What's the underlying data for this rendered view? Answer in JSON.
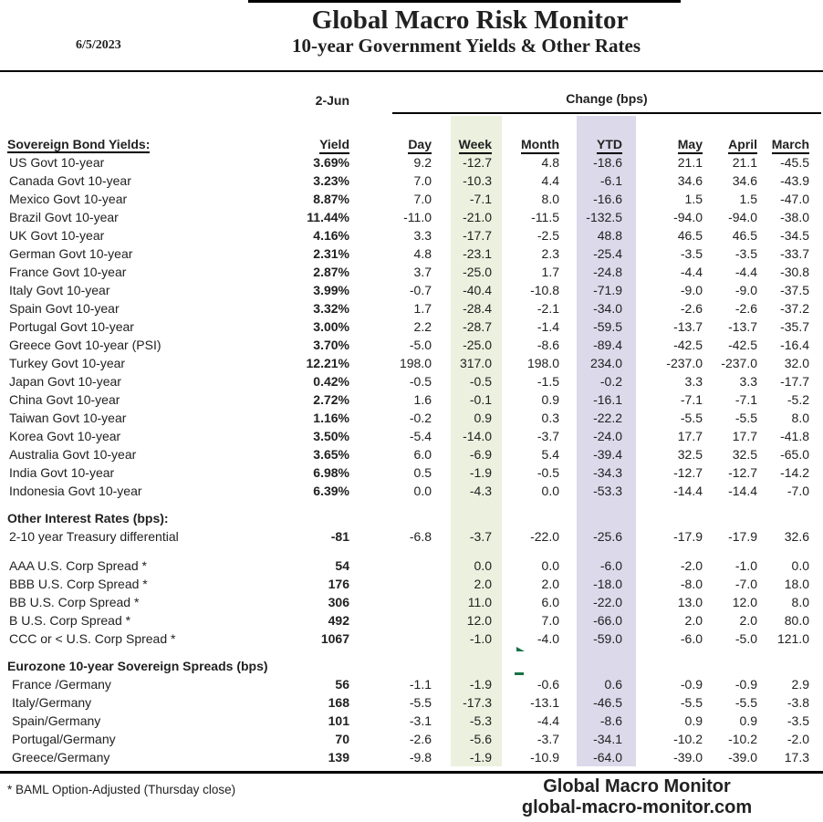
{
  "header": {
    "date": "6/5/2023",
    "title": "Global Macro Risk Monitor",
    "subtitle": "10-year Government Yields & Other Rates"
  },
  "columns": {
    "asof": "2-Jun",
    "yield_label": "Yield",
    "change_group": "Change (bps)",
    "names": [
      "Day",
      "Week",
      "Month",
      "YTD",
      "May",
      "April",
      "March"
    ]
  },
  "sections": [
    {
      "title": "Sovereign Bond Yields:",
      "rows": [
        {
          "label": "US Govt 10-year",
          "yield": "3.69%",
          "values": [
            "9.2",
            "-12.7",
            "4.8",
            "-18.6",
            "21.1",
            "21.1",
            "-45.5"
          ]
        },
        {
          "label": "Canada Govt 10-year",
          "yield": "3.23%",
          "values": [
            "7.0",
            "-10.3",
            "4.4",
            "-6.1",
            "34.6",
            "34.6",
            "-43.9"
          ]
        },
        {
          "label": "Mexico Govt 10-year",
          "yield": "8.87%",
          "values": [
            "7.0",
            "-7.1",
            "8.0",
            "-16.6",
            "1.5",
            "1.5",
            "-47.0"
          ]
        },
        {
          "label": "Brazil Govt 10-year",
          "yield": "11.44%",
          "values": [
            "-11.0",
            "-21.0",
            "-11.5",
            "-132.5",
            "-94.0",
            "-94.0",
            "-38.0"
          ]
        },
        {
          "label": "UK Govt 10-year",
          "yield": "4.16%",
          "values": [
            "3.3",
            "-17.7",
            "-2.5",
            "48.8",
            "46.5",
            "46.5",
            "-34.5"
          ]
        },
        {
          "label": "German Govt 10-year",
          "yield": "2.31%",
          "values": [
            "4.8",
            "-23.1",
            "2.3",
            "-25.4",
            "-3.5",
            "-3.5",
            "-33.7"
          ]
        },
        {
          "label": "France Govt 10-year",
          "yield": "2.87%",
          "values": [
            "3.7",
            "-25.0",
            "1.7",
            "-24.8",
            "-4.4",
            "-4.4",
            "-30.8"
          ]
        },
        {
          "label": "Italy Govt 10-year",
          "yield": "3.99%",
          "values": [
            "-0.7",
            "-40.4",
            "-10.8",
            "-71.9",
            "-9.0",
            "-9.0",
            "-37.5"
          ]
        },
        {
          "label": "Spain Govt 10-year",
          "yield": "3.32%",
          "values": [
            "1.7",
            "-28.4",
            "-2.1",
            "-34.0",
            "-2.6",
            "-2.6",
            "-37.2"
          ]
        },
        {
          "label": "Portugal Govt 10-year",
          "yield": "3.00%",
          "values": [
            "2.2",
            "-28.7",
            "-1.4",
            "-59.5",
            "-13.7",
            "-13.7",
            "-35.7"
          ]
        },
        {
          "label": "Greece Govt 10-year (PSI)",
          "yield": "3.70%",
          "values": [
            "-5.0",
            "-25.0",
            "-8.6",
            "-89.4",
            "-42.5",
            "-42.5",
            "-16.4"
          ]
        },
        {
          "label": "Turkey Govt 10-year",
          "yield": "12.21%",
          "values": [
            "198.0",
            "317.0",
            "198.0",
            "234.0",
            "-237.0",
            "-237.0",
            "32.0"
          ]
        },
        {
          "label": "Japan Govt 10-year",
          "yield": "0.42%",
          "values": [
            "-0.5",
            "-0.5",
            "-1.5",
            "-0.2",
            "3.3",
            "3.3",
            "-17.7"
          ]
        },
        {
          "label": "China Govt 10-year",
          "yield": "2.72%",
          "values": [
            "1.6",
            "-0.1",
            "0.9",
            "-16.1",
            "-7.1",
            "-7.1",
            "-5.2"
          ]
        },
        {
          "label": "Taiwan Govt 10-year",
          "yield": "1.16%",
          "values": [
            "-0.2",
            "0.9",
            "0.3",
            "-22.2",
            "-5.5",
            "-5.5",
            "8.0"
          ]
        },
        {
          "label": "Korea Govt 10-year",
          "yield": "3.50%",
          "values": [
            "-5.4",
            "-14.0",
            "-3.7",
            "-24.0",
            "17.7",
            "17.7",
            "-41.8"
          ]
        },
        {
          "label": "Australia Govt 10-year",
          "yield": "3.65%",
          "values": [
            "6.0",
            "-6.9",
            "5.4",
            "-39.4",
            "32.5",
            "32.5",
            "-65.0"
          ]
        },
        {
          "label": "India Govt 10-year",
          "yield": "6.98%",
          "values": [
            "0.5",
            "-1.9",
            "-0.5",
            "-34.3",
            "-12.7",
            "-12.7",
            "-14.2"
          ]
        },
        {
          "label": "Indonesia Govt 10-year",
          "yield": "6.39%",
          "values": [
            "0.0",
            "-4.3",
            "0.0",
            "-53.3",
            "-14.4",
            "-14.4",
            "-7.0"
          ]
        }
      ]
    },
    {
      "title": "Other Interest Rates  (bps):",
      "rows": [
        {
          "label": "2-10 year Treasury differential",
          "yield": "-81",
          "values": [
            "-6.8",
            "-3.7",
            "-22.0",
            "-25.6",
            "-17.9",
            "-17.9",
            "32.6"
          ]
        }
      ]
    },
    {
      "title": null,
      "rows": [
        {
          "label": "AAA U.S. Corp Spread *",
          "yield": "54",
          "values": [
            "",
            "0.0",
            "0.0",
            "-6.0",
            "-2.0",
            "-1.0",
            "0.0"
          ]
        },
        {
          "label": "BBB U.S. Corp Spread *",
          "yield": "176",
          "values": [
            "",
            "2.0",
            "2.0",
            "-18.0",
            "-8.0",
            "-7.0",
            "18.0"
          ]
        },
        {
          "label": "BB U.S. Corp Spread *",
          "yield": "306",
          "values": [
            "",
            "11.0",
            "6.0",
            "-22.0",
            "13.0",
            "12.0",
            "8.0"
          ]
        },
        {
          "label": "B U.S. Corp Spread *",
          "yield": "492",
          "values": [
            "",
            "12.0",
            "7.0",
            "-66.0",
            "2.0",
            "2.0",
            "80.0"
          ]
        },
        {
          "label": "CCC or < U.S. Corp Spread *",
          "yield": "1067",
          "values": [
            "",
            "-1.0",
            "-4.0",
            "-59.0",
            "-6.0",
            "-5.0",
            "121.0"
          ]
        }
      ]
    },
    {
      "title": "Eurozone 10-year Sovereign Spreads (bps)",
      "rows": [
        {
          "label": "France /Germany",
          "yield": "56",
          "values": [
            "-1.1",
            "-1.9",
            "-0.6",
            "0.6",
            "-0.9",
            "-0.9",
            "2.9"
          ]
        },
        {
          "label": "Italy/Germany",
          "yield": "168",
          "values": [
            "-5.5",
            "-17.3",
            "-13.1",
            "-46.5",
            "-5.5",
            "-5.5",
            "-3.8"
          ]
        },
        {
          "label": "Spain/Germany",
          "yield": "101",
          "values": [
            "-3.1",
            "-5.3",
            "-4.4",
            "-8.6",
            "0.9",
            "0.9",
            "-3.5"
          ]
        },
        {
          "label": "Portugal/Germany",
          "yield": "70",
          "values": [
            "-2.6",
            "-5.6",
            "-3.7",
            "-34.1",
            "-10.2",
            "-10.2",
            "-2.0"
          ]
        },
        {
          "label": "Greece/Germany",
          "yield": "139",
          "values": [
            "-9.8",
            "-1.9",
            "-10.9",
            "-64.0",
            "-39.0",
            "-39.0",
            "17.3"
          ]
        }
      ]
    }
  ],
  "footer": {
    "note": "* BAML Option-Adjusted (Thursday close)",
    "brand_line1": "Global Macro Monitor",
    "brand_line2": "global-macro-monitor.com"
  },
  "colors": {
    "week_band": "#ECF0DE",
    "ytd_band": "#DCD9EA"
  }
}
